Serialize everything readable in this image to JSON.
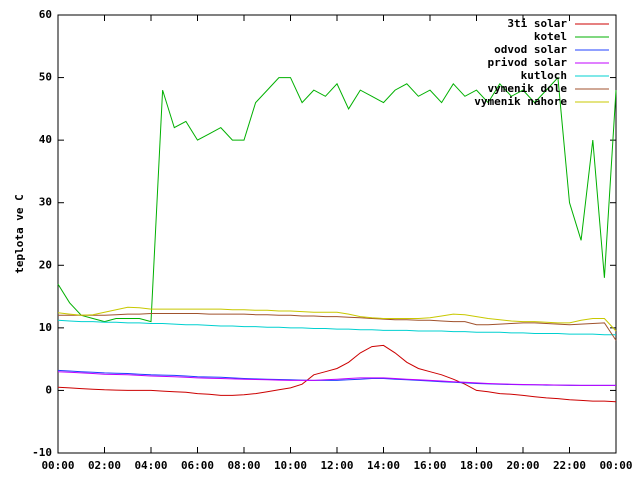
{
  "chart_data": {
    "type": "line",
    "y_label": "teplota ve C",
    "x": [
      0,
      0.5,
      1,
      1.5,
      2,
      2.5,
      3,
      3.5,
      4,
      4.5,
      5,
      5.5,
      6,
      6.5,
      7,
      7.5,
      8,
      8.5,
      9,
      9.5,
      10,
      10.5,
      11,
      11.5,
      12,
      12.5,
      13,
      13.5,
      14,
      14.5,
      15,
      15.5,
      16,
      16.5,
      17,
      17.5,
      18,
      18.5,
      19,
      19.5,
      20,
      20.5,
      21,
      21.5,
      22,
      22.5,
      23,
      23.5,
      24
    ],
    "xlim": [
      0,
      24
    ],
    "xticks": [
      {
        "value": 0,
        "label": "00:00"
      },
      {
        "value": 2,
        "label": "02:00"
      },
      {
        "value": 4,
        "label": "04:00"
      },
      {
        "value": 6,
        "label": "06:00"
      },
      {
        "value": 8,
        "label": "08:00"
      },
      {
        "value": 10,
        "label": "10:00"
      },
      {
        "value": 12,
        "label": "12:00"
      },
      {
        "value": 14,
        "label": "14:00"
      },
      {
        "value": 16,
        "label": "16:00"
      },
      {
        "value": 18,
        "label": "18:00"
      },
      {
        "value": 20,
        "label": "20:00"
      },
      {
        "value": 22,
        "label": "22:00"
      },
      {
        "value": 24,
        "label": "00:00"
      }
    ],
    "ylim": [
      -10,
      60
    ],
    "yticks": [
      -10,
      0,
      10,
      20,
      30,
      40,
      50,
      60
    ],
    "legend": "top-right",
    "series": [
      {
        "name": "3ti solar",
        "color": "#cc0000",
        "values": [
          0.5,
          0.4,
          0.3,
          0.2,
          0.1,
          0.05,
          0,
          0,
          0,
          -0.1,
          -0.2,
          -0.3,
          -0.5,
          -0.6,
          -0.8,
          -0.8,
          -0.7,
          -0.5,
          -0.2,
          0.1,
          0.4,
          1,
          2.5,
          3,
          3.5,
          4.5,
          6,
          7,
          7.2,
          6,
          4.5,
          3.5,
          3,
          2.5,
          1.8,
          1,
          0,
          -0.2,
          -0.5,
          -0.6,
          -0.8,
          -1,
          -1.2,
          -1.3,
          -1.5,
          -1.6,
          -1.7,
          -1.7,
          -1.8
        ]
      },
      {
        "name": "kotel",
        "color": "#00b000",
        "values": [
          17,
          14,
          12,
          11.5,
          11,
          11.5,
          11.5,
          11.5,
          11,
          48,
          42,
          43,
          40,
          41,
          42,
          40,
          40,
          46,
          48,
          50,
          50,
          46,
          48,
          47,
          49,
          45,
          48,
          47,
          46,
          48,
          49,
          47,
          48,
          46,
          49,
          47,
          48,
          46,
          49,
          47,
          48,
          46,
          48,
          50,
          30,
          24,
          40,
          18,
          48
        ]
      },
      {
        "name": "odvod solar",
        "color": "#2040ff",
        "values": [
          3.2,
          3.1,
          3.0,
          2.9,
          2.8,
          2.75,
          2.7,
          2.6,
          2.5,
          2.45,
          2.4,
          2.3,
          2.2,
          2.15,
          2.1,
          2.0,
          1.9,
          1.85,
          1.8,
          1.75,
          1.7,
          1.65,
          1.6,
          1.6,
          1.6,
          1.7,
          1.8,
          1.9,
          1.9,
          1.8,
          1.7,
          1.6,
          1.5,
          1.4,
          1.3,
          1.2,
          1.1,
          1.05,
          1.0,
          0.95,
          0.9,
          0.9,
          0.85,
          0.85,
          0.8,
          0.8,
          0.8,
          0.8,
          0.8
        ]
      },
      {
        "name": "privod solar",
        "color": "#c000ff",
        "values": [
          3.0,
          2.9,
          2.8,
          2.7,
          2.6,
          2.55,
          2.5,
          2.4,
          2.3,
          2.25,
          2.2,
          2.1,
          2.0,
          1.95,
          1.9,
          1.85,
          1.8,
          1.75,
          1.7,
          1.65,
          1.6,
          1.6,
          1.6,
          1.7,
          1.8,
          1.9,
          2.0,
          2.0,
          2.0,
          1.9,
          1.8,
          1.7,
          1.6,
          1.5,
          1.4,
          1.3,
          1.2,
          1.1,
          1.05,
          1.0,
          0.95,
          0.9,
          0.9,
          0.85,
          0.85,
          0.8,
          0.8,
          0.8,
          0.8
        ]
      },
      {
        "name": "kutloch",
        "color": "#00d0d0",
        "values": [
          11.2,
          11.1,
          11,
          11,
          10.9,
          10.9,
          10.8,
          10.8,
          10.7,
          10.7,
          10.6,
          10.5,
          10.5,
          10.4,
          10.3,
          10.3,
          10.2,
          10.2,
          10.1,
          10.1,
          10,
          10,
          9.9,
          9.9,
          9.8,
          9.8,
          9.7,
          9.7,
          9.6,
          9.6,
          9.6,
          9.5,
          9.5,
          9.5,
          9.4,
          9.4,
          9.3,
          9.3,
          9.3,
          9.2,
          9.2,
          9.1,
          9.1,
          9.1,
          9,
          9,
          9,
          8.9,
          8.9
        ]
      },
      {
        "name": "vymenik dole",
        "color": "#a0522d",
        "values": [
          12,
          12,
          12,
          12,
          12,
          12.1,
          12.2,
          12.2,
          12.3,
          12.3,
          12.3,
          12.3,
          12.3,
          12.2,
          12.2,
          12.2,
          12.2,
          12.1,
          12.1,
          12,
          12,
          11.9,
          11.9,
          11.8,
          11.8,
          11.7,
          11.6,
          11.5,
          11.4,
          11.3,
          11.3,
          11.2,
          11.2,
          11.1,
          11,
          11,
          10.5,
          10.5,
          10.6,
          10.7,
          10.8,
          10.8,
          10.7,
          10.6,
          10.5,
          10.6,
          10.7,
          10.8,
          8
        ]
      },
      {
        "name": "vymenik nahore",
        "color": "#c8c800",
        "values": [
          12.4,
          12.2,
          12,
          12.1,
          12.5,
          12.9,
          13.3,
          13.2,
          13,
          13,
          13,
          13,
          13,
          13,
          13,
          12.9,
          12.9,
          12.8,
          12.8,
          12.7,
          12.7,
          12.6,
          12.5,
          12.5,
          12.5,
          12.2,
          11.8,
          11.6,
          11.5,
          11.5,
          11.5,
          11.5,
          11.6,
          11.9,
          12.2,
          12.1,
          11.8,
          11.5,
          11.3,
          11.1,
          11,
          11,
          10.9,
          10.8,
          10.8,
          11.2,
          11.5,
          11.5,
          9.5
        ]
      }
    ]
  }
}
